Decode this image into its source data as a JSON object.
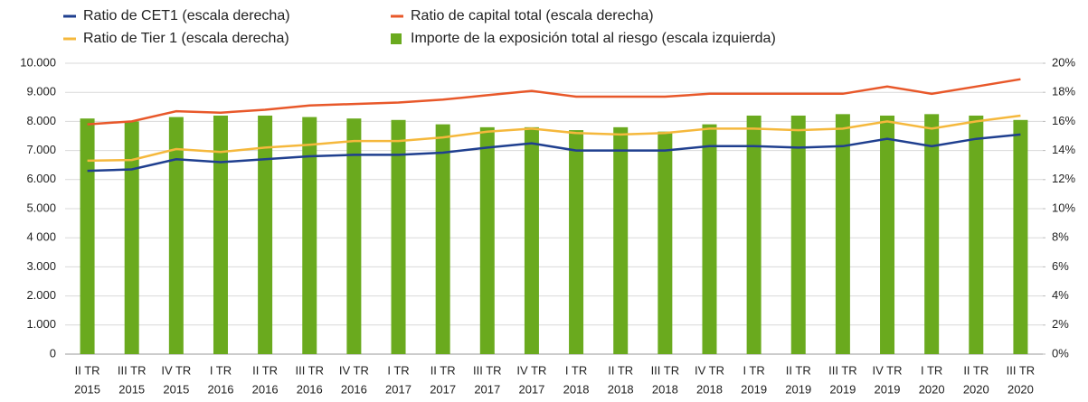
{
  "chart_data": {
    "type": "bar_line",
    "categories": [
      [
        "II TR",
        "2015"
      ],
      [
        "III TR",
        "2015"
      ],
      [
        "IV TR",
        "2015"
      ],
      [
        "I TR",
        "2016"
      ],
      [
        "II TR",
        "2016"
      ],
      [
        "III TR",
        "2016"
      ],
      [
        "IV TR",
        "2016"
      ],
      [
        "I TR",
        "2017"
      ],
      [
        "II TR",
        "2017"
      ],
      [
        "III TR",
        "2017"
      ],
      [
        "IV TR",
        "2017"
      ],
      [
        "I TR",
        "2018"
      ],
      [
        "II TR",
        "2018"
      ],
      [
        "III TR",
        "2018"
      ],
      [
        "IV TR",
        "2018"
      ],
      [
        "I TR",
        "2019"
      ],
      [
        "II TR",
        "2019"
      ],
      [
        "III TR",
        "2019"
      ],
      [
        "IV TR",
        "2019"
      ],
      [
        "I TR",
        "2020"
      ],
      [
        "II TR",
        "2020"
      ],
      [
        "III TR",
        "2020"
      ]
    ],
    "series": [
      {
        "name": "Ratio de CET1 (escala derecha)",
        "color": "#1f3f8f",
        "kind": "line",
        "axis": "y2",
        "values": [
          12.6,
          12.7,
          13.4,
          13.2,
          13.4,
          13.6,
          13.7,
          13.7,
          13.85,
          14.2,
          14.5,
          14.0,
          14.0,
          14.0,
          14.3,
          14.3,
          14.2,
          14.3,
          14.8,
          14.3,
          14.8,
          15.1
        ]
      },
      {
        "name": "Ratio de capital total (escala derecha)",
        "color": "#e8582a",
        "kind": "line",
        "axis": "y2",
        "values": [
          15.8,
          16.0,
          16.7,
          16.6,
          16.8,
          17.1,
          17.2,
          17.3,
          17.5,
          17.8,
          18.1,
          17.7,
          17.7,
          17.7,
          17.9,
          17.9,
          17.9,
          17.9,
          18.4,
          17.9,
          18.4,
          18.9
        ]
      },
      {
        "name": "Ratio de Tier 1 (escala derecha)",
        "color": "#f5b83c",
        "kind": "line",
        "axis": "y2",
        "values": [
          13.3,
          13.35,
          14.1,
          13.9,
          14.2,
          14.4,
          14.65,
          14.65,
          14.9,
          15.3,
          15.5,
          15.2,
          15.1,
          15.2,
          15.5,
          15.5,
          15.4,
          15.5,
          16.0,
          15.5,
          16.0,
          16.4
        ]
      },
      {
        "name": "Importe de la exposición total al riesgo (escala izquierda)",
        "color": "#6aaa1e",
        "kind": "bar",
        "values": [
          8100,
          8000,
          8150,
          8200,
          8200,
          8150,
          8100,
          8050,
          7900,
          7800,
          7800,
          7700,
          7800,
          7650,
          7900,
          8200,
          8200,
          8250,
          8200,
          8250,
          8200,
          8050
        ]
      }
    ],
    "ylim": [
      0,
      10000
    ],
    "yticks": [
      0,
      {
        "value": 1000,
        "label": "1.000"
      },
      {
        "value": 2000,
        "label": "2.000"
      },
      {
        "value": 3000,
        "label": "3.000"
      },
      {
        "value": 4000,
        "label": "4 000"
      },
      {
        "value": 5000,
        "label": "5.000"
      },
      {
        "value": 6000,
        "label": "6.000"
      },
      {
        "value": 7000,
        "label": "7.000"
      },
      {
        "value": 8000,
        "label": "8.000"
      },
      {
        "value": 9000,
        "label": "9.000"
      },
      {
        "value": 10000,
        "label": "10.000"
      }
    ],
    "y2lim": [
      0,
      20
    ],
    "y2ticks": [
      {
        "value": 0,
        "label": "0%"
      },
      {
        "value": 2,
        "label": "2%"
      },
      {
        "value": 4,
        "label": "4%"
      },
      {
        "value": 6,
        "label": "6%"
      },
      {
        "value": 8,
        "label": "8%"
      },
      {
        "value": 10,
        "label": "10%"
      },
      {
        "value": 12,
        "label": "12%"
      },
      {
        "value": 14,
        "label": "14%"
      },
      {
        "value": 16,
        "label": "16%"
      },
      {
        "value": 18,
        "label": "18%"
      },
      {
        "value": 20,
        "label": "20%"
      }
    ],
    "grid": true
  }
}
